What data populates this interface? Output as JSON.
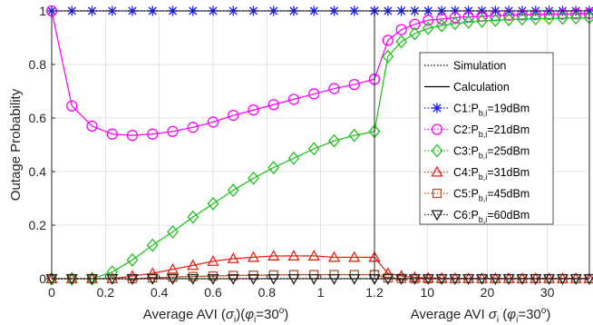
{
  "chart_data": {
    "type": "line",
    "ylabel": "Outage Probability",
    "ylim": [
      0,
      1
    ],
    "yticks": [
      "0",
      "0.2",
      "0.4",
      "0.6",
      "0.8",
      "1"
    ],
    "grid": true,
    "legend_placement": "right",
    "legend": [
      {
        "label": "Simulation",
        "line": "dotted"
      },
      {
        "label": "Calculation",
        "line": "solid"
      }
    ],
    "panels": [
      {
        "xlabel_text": "Average AVI (",
        "xlabel_sigma": "σ",
        "xlabel_sigma_sub": "i",
        "xlabel_mid": ")(",
        "xlabel_phi": "φ",
        "xlabel_phi_sub": "i",
        "xlabel_eq": "=30",
        "xlabel_sup": "o",
        "xlabel_end": ")",
        "xlim": [
          0,
          1.2
        ],
        "xticks": [
          "0",
          "0.2",
          "0.4",
          "0.6",
          "0.8",
          "1",
          "1.2"
        ],
        "x": [
          0,
          0.075,
          0.15,
          0.225,
          0.3,
          0.375,
          0.45,
          0.525,
          0.6,
          0.675,
          0.75,
          0.825,
          0.9,
          0.975,
          1.05,
          1.125,
          1.2
        ]
      },
      {
        "xlabel_text": "Average AVI ",
        "xlabel_sigma": "σ",
        "xlabel_sigma_sub": "i",
        "xlabel_mid": "   (",
        "xlabel_phi": "φ",
        "xlabel_phi_sub": "i",
        "xlabel_eq": "=30",
        "xlabel_sup": "o",
        "xlabel_end": ")",
        "xlim": [
          1.2,
          37
        ],
        "xticks": [
          "10",
          "20",
          "30"
        ],
        "xtick_values": [
          10,
          20,
          30
        ],
        "x": [
          1.2,
          3.44,
          5.68,
          7.91,
          10.15,
          12.39,
          14.63,
          16.86,
          19.1,
          21.34,
          23.58,
          25.81,
          28.05,
          30.29,
          32.53,
          34.76,
          37
        ]
      }
    ],
    "series": [
      {
        "name": "C1:P",
        "name_sub": "b,i",
        "name_suffix": "=19dBm",
        "color": "#1a1aff",
        "marker": "asterisk",
        "values": [
          1,
          1,
          1,
          1,
          1,
          1,
          1,
          1,
          1,
          1,
          1,
          1,
          1,
          1,
          1,
          1,
          1
        ],
        "values2": [
          1,
          1,
          1,
          1,
          1,
          1,
          1,
          1,
          1,
          1,
          1,
          1,
          1,
          1,
          1,
          1,
          1
        ]
      },
      {
        "name": "C2:P",
        "name_sub": "b,i",
        "name_suffix": "=21dBm",
        "color": "#ff00ff",
        "marker": "circle",
        "values": [
          1,
          0.645,
          0.57,
          0.54,
          0.535,
          0.54,
          0.55,
          0.565,
          0.585,
          0.61,
          0.63,
          0.65,
          0.67,
          0.69,
          0.71,
          0.725,
          0.745
        ],
        "values2": [
          0.745,
          0.89,
          0.93,
          0.95,
          0.965,
          0.97,
          0.975,
          0.978,
          0.98,
          0.982,
          0.984,
          0.985,
          0.986,
          0.987,
          0.988,
          0.989,
          0.99
        ]
      },
      {
        "name": "C3:P",
        "name_sub": "b,i",
        "name_suffix": "=25dBm",
        "color": "#1fc01f",
        "marker": "diamond",
        "values": [
          0,
          0,
          0,
          0.025,
          0.07,
          0.125,
          0.175,
          0.23,
          0.28,
          0.33,
          0.375,
          0.415,
          0.45,
          0.485,
          0.515,
          0.535,
          0.55
        ],
        "values2": [
          0.55,
          0.83,
          0.885,
          0.915,
          0.935,
          0.945,
          0.953,
          0.958,
          0.962,
          0.965,
          0.968,
          0.97,
          0.971,
          0.972,
          0.973,
          0.974,
          0.975
        ]
      },
      {
        "name": "C4:P",
        "name_sub": "b,i",
        "name_suffix": "=31dBm",
        "color": "#e8221b",
        "marker": "triangle",
        "values": [
          0,
          0,
          0,
          0,
          0.01,
          0.02,
          0.035,
          0.05,
          0.065,
          0.075,
          0.08,
          0.085,
          0.085,
          0.085,
          0.08,
          0.08,
          0.08
        ],
        "values2": [
          0.08,
          0.02,
          0.01,
          0.005,
          0.003,
          0.002,
          0.001,
          0.001,
          0.001,
          0.001,
          0.001,
          0.001,
          0.001,
          0.001,
          0.001,
          0.001,
          0.001
        ]
      },
      {
        "name": "C5:P",
        "name_sub": "b,i",
        "name_suffix": "=45dBm",
        "color": "#b5542a",
        "marker": "square",
        "values": [
          0,
          0,
          0,
          0,
          0,
          0.003,
          0.006,
          0.008,
          0.01,
          0.012,
          0.013,
          0.014,
          0.015,
          0.015,
          0.015,
          0.015,
          0.015
        ],
        "values2": [
          0.015,
          0.003,
          0.001,
          0,
          0,
          0,
          0,
          0,
          0,
          0,
          0,
          0,
          0,
          0,
          0,
          0,
          0
        ]
      },
      {
        "name": "C6:P",
        "name_sub": "b,i",
        "name_suffix": "=60dBm",
        "color": "#222222",
        "marker": "triangle-down",
        "values": [
          0,
          0,
          0,
          0,
          0,
          0,
          0,
          0,
          0,
          0,
          0,
          0,
          0,
          0,
          0,
          0,
          0
        ],
        "values2": [
          0,
          0,
          0,
          0,
          0,
          0,
          0,
          0,
          0,
          0,
          0,
          0,
          0,
          0,
          0,
          0,
          0
        ]
      }
    ]
  }
}
